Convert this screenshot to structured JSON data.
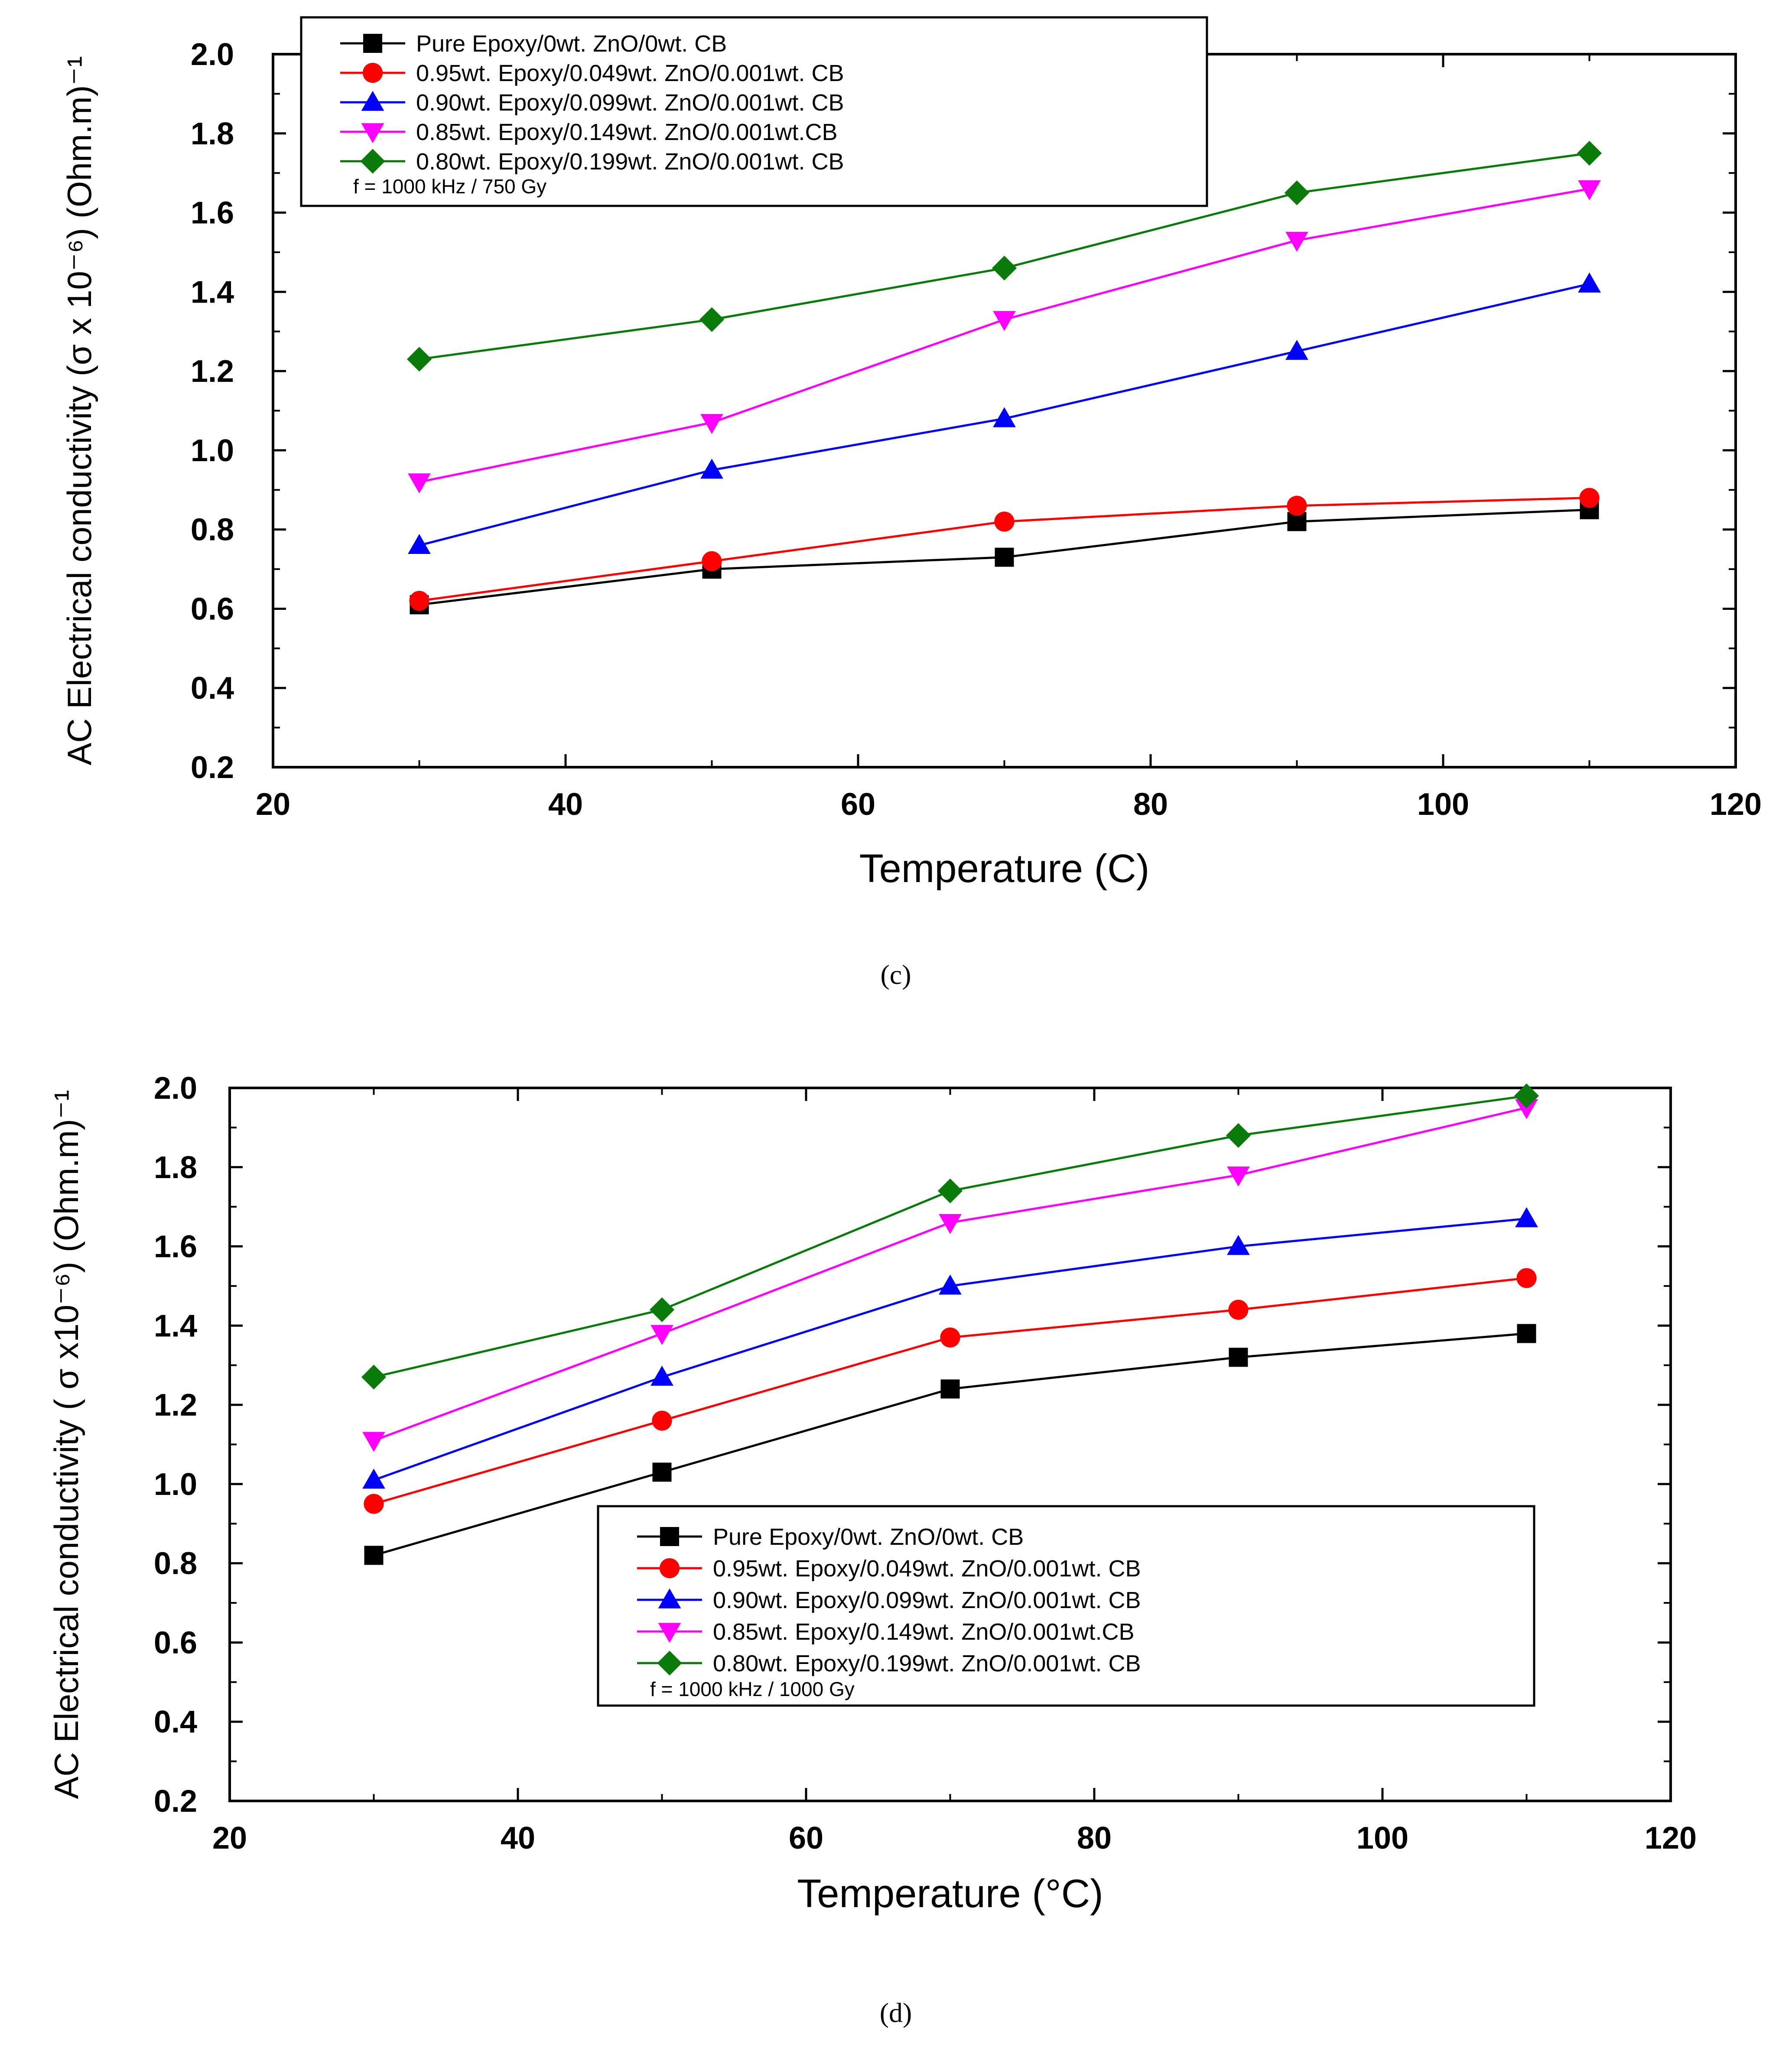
{
  "colors": {
    "black": "#000000",
    "red": "#ff0000",
    "blue": "#0000ff",
    "magenta": "#ff00ff",
    "green": "#0a7a0a"
  },
  "chart_data": [
    {
      "type": "line",
      "panel_label": "c",
      "xlabel": "Temperature",
      "xunit": "C",
      "ylabel": "AC Electrical conductivity",
      "yunit_text": "(σ x 10⁻⁶) (Ohm.m)⁻¹",
      "xlim": [
        20,
        120
      ],
      "ylim": [
        0.2,
        2.0
      ],
      "xticks": [
        "20",
        "40",
        "60",
        "80",
        "100",
        "120"
      ],
      "yticks": [
        "0.2",
        "0.4",
        "0.6",
        "0.8",
        "1.0",
        "1.2",
        "1.4",
        "1.6",
        "1.8",
        "2.0"
      ],
      "x": [
        30,
        50,
        70,
        90,
        110
      ],
      "legend_position": "top-left",
      "legend_note": "f = 1000 kHz / 750 Gy",
      "series": [
        {
          "name": "Pure Epoxy/0wt. ZnO/0wt. CB",
          "color": "#000000",
          "marker": "square",
          "values": [
            0.61,
            0.7,
            0.73,
            0.82,
            0.85
          ]
        },
        {
          "name": "0.95wt. Epoxy/0.049wt. ZnO/0.001wt. CB",
          "color": "#ff0000",
          "marker": "circle",
          "values": [
            0.62,
            0.72,
            0.82,
            0.86,
            0.88
          ]
        },
        {
          "name": "0.90wt. Epoxy/0.099wt. ZnO/0.001wt. CB",
          "color": "#0000ff",
          "marker": "triangle-up",
          "values": [
            0.76,
            0.95,
            1.08,
            1.25,
            1.42
          ]
        },
        {
          "name": "0.85wt. Epoxy/0.149wt. ZnO/0.001wt.CB",
          "color": "#ff00ff",
          "marker": "triangle-down",
          "values": [
            0.92,
            1.07,
            1.33,
            1.53,
            1.66
          ]
        },
        {
          "name": "0.80wt. Epoxy/0.199wt. ZnO/0.001wt. CB",
          "color": "#0a7a0a",
          "marker": "diamond",
          "values": [
            1.23,
            1.33,
            1.46,
            1.65,
            1.75
          ]
        }
      ]
    },
    {
      "type": "line",
      "panel_label": "d",
      "xlabel": "Temperature",
      "xunit": "°C",
      "ylabel": "AC Electrical conductivity",
      "yunit_text": "( σ x10⁻⁶) (Ohm.m)⁻¹",
      "xlim": [
        20,
        120
      ],
      "ylim": [
        0.2,
        2.0
      ],
      "xticks": [
        "20",
        "40",
        "60",
        "80",
        "100",
        "120"
      ],
      "yticks": [
        "0.2",
        "0.4",
        "0.6",
        "0.8",
        "1.0",
        "1.2",
        "1.4",
        "1.6",
        "1.8",
        "2.0"
      ],
      "x": [
        30,
        50,
        70,
        90,
        110
      ],
      "legend_position": "lower-right",
      "legend_note": "f = 1000 kHz / 1000 Gy",
      "series": [
        {
          "name": "Pure Epoxy/0wt. ZnO/0wt. CB",
          "color": "#000000",
          "marker": "square",
          "values": [
            0.82,
            1.03,
            1.24,
            1.32,
            1.38
          ]
        },
        {
          "name": "0.95wt. Epoxy/0.049wt. ZnO/0.001wt. CB",
          "color": "#ff0000",
          "marker": "circle",
          "values": [
            0.95,
            1.16,
            1.37,
            1.44,
            1.52
          ]
        },
        {
          "name": "0.90wt. Epoxy/0.099wt. ZnO/0.001wt. CB",
          "color": "#0000ff",
          "marker": "triangle-up",
          "values": [
            1.01,
            1.27,
            1.5,
            1.6,
            1.67
          ]
        },
        {
          "name": "0.85wt. Epoxy/0.149wt. ZnO/0.001wt.CB",
          "color": "#ff00ff",
          "marker": "triangle-down",
          "values": [
            1.11,
            1.38,
            1.66,
            1.78,
            1.95
          ]
        },
        {
          "name": "0.80wt. Epoxy/0.199wt. ZnO/0.001wt. CB",
          "color": "#0a7a0a",
          "marker": "diamond",
          "values": [
            1.27,
            1.44,
            1.74,
            1.88,
            1.98
          ]
        }
      ]
    }
  ]
}
